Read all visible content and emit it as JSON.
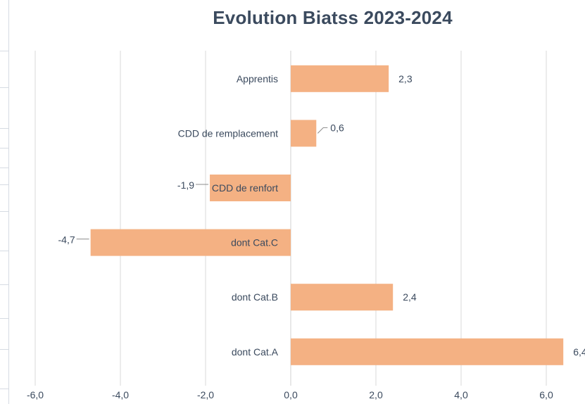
{
  "chart_data": {
    "type": "bar",
    "orientation": "horizontal",
    "title": "Evolution Biatss 2023-2024",
    "categories": [
      "Apprentis",
      "CDD de remplacement",
      "CDD de renfort",
      "dont Cat.C",
      "dont Cat.B",
      "dont Cat.A"
    ],
    "values": [
      2.3,
      0.6,
      -1.9,
      -4.7,
      2.4,
      6.4
    ],
    "data_labels": [
      "2,3",
      "0,6",
      "-1,9",
      "-4,7",
      "2,4",
      "6,4"
    ],
    "xlim": [
      -6,
      6.4
    ],
    "x_ticks": [
      -6,
      -4,
      -2,
      0,
      2,
      4,
      6
    ],
    "x_tick_labels": [
      "-6,0",
      "-4,0",
      "-2,0",
      "0,0",
      "2,0",
      "4,0",
      "6,0"
    ],
    "xlabel": "",
    "ylabel": "",
    "grid": true,
    "bar_color": "#f4b183",
    "text_color": "#3b4a5e"
  }
}
